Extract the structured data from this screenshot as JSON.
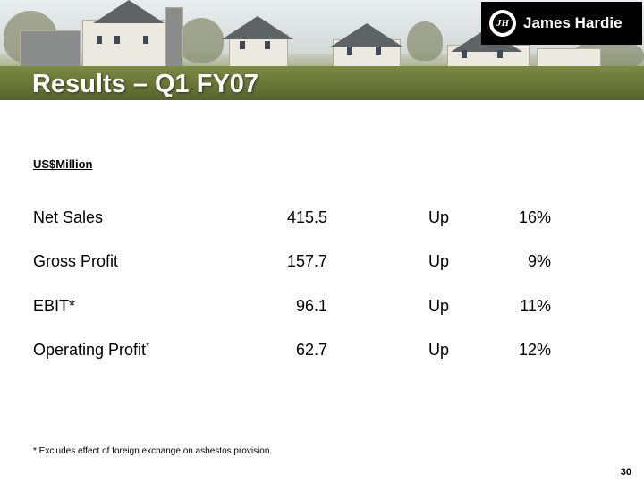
{
  "header": {
    "title": "Results – Q1 FY07",
    "logo_mark": "JH",
    "logo_text": "James Hardie"
  },
  "unit_label": "US$Million",
  "rows": [
    {
      "label": "Net Sales",
      "marker": "",
      "value": "415.5",
      "direction": "Up",
      "change": "16%"
    },
    {
      "label": "Gross Profit",
      "marker": "",
      "value": "157.7",
      "direction": "Up",
      "change": "9%"
    },
    {
      "label": "EBIT*",
      "marker": "",
      "value": "96.1",
      "direction": "Up",
      "change": "11%"
    },
    {
      "label": "Operating Profit",
      "marker": "*",
      "value": "62.7",
      "direction": "Up",
      "change": "12%"
    }
  ],
  "footnote": "* Excludes effect of foreign exchange on asbestos provision.",
  "page_number": "30"
}
